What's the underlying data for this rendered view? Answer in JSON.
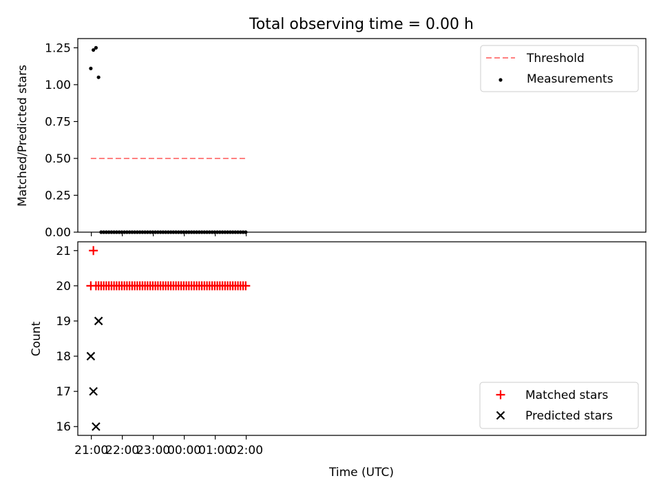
{
  "chart_data": [
    {
      "type": "scatter",
      "title": "Total observing time = 0.00 h",
      "xlabel": "",
      "ylabel": "Matched/Predicted stars",
      "xlim_minutes_after_21": [
        -26.2,
        1074.2
      ],
      "ylim": [
        0,
        1.3125
      ],
      "yticks": [
        "0.00",
        "0.25",
        "0.50",
        "0.75",
        "1.00",
        "1.25"
      ],
      "x_tick_labels_visible": false,
      "threshold": {
        "name": "Threshold",
        "y": 0.5,
        "x_start": "20:59",
        "x_end": "02:00",
        "color": "#ff7f7f",
        "style": "dashed"
      },
      "series": [
        {
          "name": "Measurements",
          "color": "#000000",
          "points": [
            {
              "x": "20:59",
              "y": 1.11
            },
            {
              "x": "21:04",
              "y": 1.235
            },
            {
              "x": "21:09",
              "y": 1.25
            },
            {
              "x": "21:14",
              "y": 1.05
            }
          ],
          "zero_points": {
            "y": 0,
            "x_start": "21:19",
            "x_end": "02:00",
            "step_minutes": 5
          }
        }
      ],
      "legend": {
        "position": "top-right",
        "entries": [
          "Threshold",
          "Measurements"
        ]
      }
    },
    {
      "type": "scatter",
      "title": "",
      "xlabel": "Time (UTC)",
      "ylabel": "Count",
      "xlim_minutes_after_21": [
        -26.2,
        1074.2
      ],
      "ylim": [
        15.75,
        21.25
      ],
      "yticks": [
        "16",
        "17",
        "18",
        "19",
        "20",
        "21"
      ],
      "xticks": [
        "21:00",
        "22:00",
        "23:00",
        "00:00",
        "01:00",
        "02:00"
      ],
      "series": [
        {
          "name": "Matched stars",
          "marker": "+",
          "color": "#ff0000",
          "points": [
            {
              "x": "20:59",
              "y": 20
            },
            {
              "x": "21:04",
              "y": 21
            }
          ],
          "constant_points": {
            "y": 20,
            "x_start": "21:09",
            "x_end": "02:00",
            "step_minutes": 5
          }
        },
        {
          "name": "Predicted stars",
          "marker": "x",
          "color": "#000000",
          "points": [
            {
              "x": "20:59",
              "y": 18
            },
            {
              "x": "21:04",
              "y": 17
            },
            {
              "x": "21:09",
              "y": 16
            },
            {
              "x": "21:14",
              "y": 19
            }
          ]
        }
      ],
      "legend": {
        "position": "bottom-right",
        "entries": [
          "Matched stars",
          "Predicted stars"
        ]
      }
    }
  ]
}
